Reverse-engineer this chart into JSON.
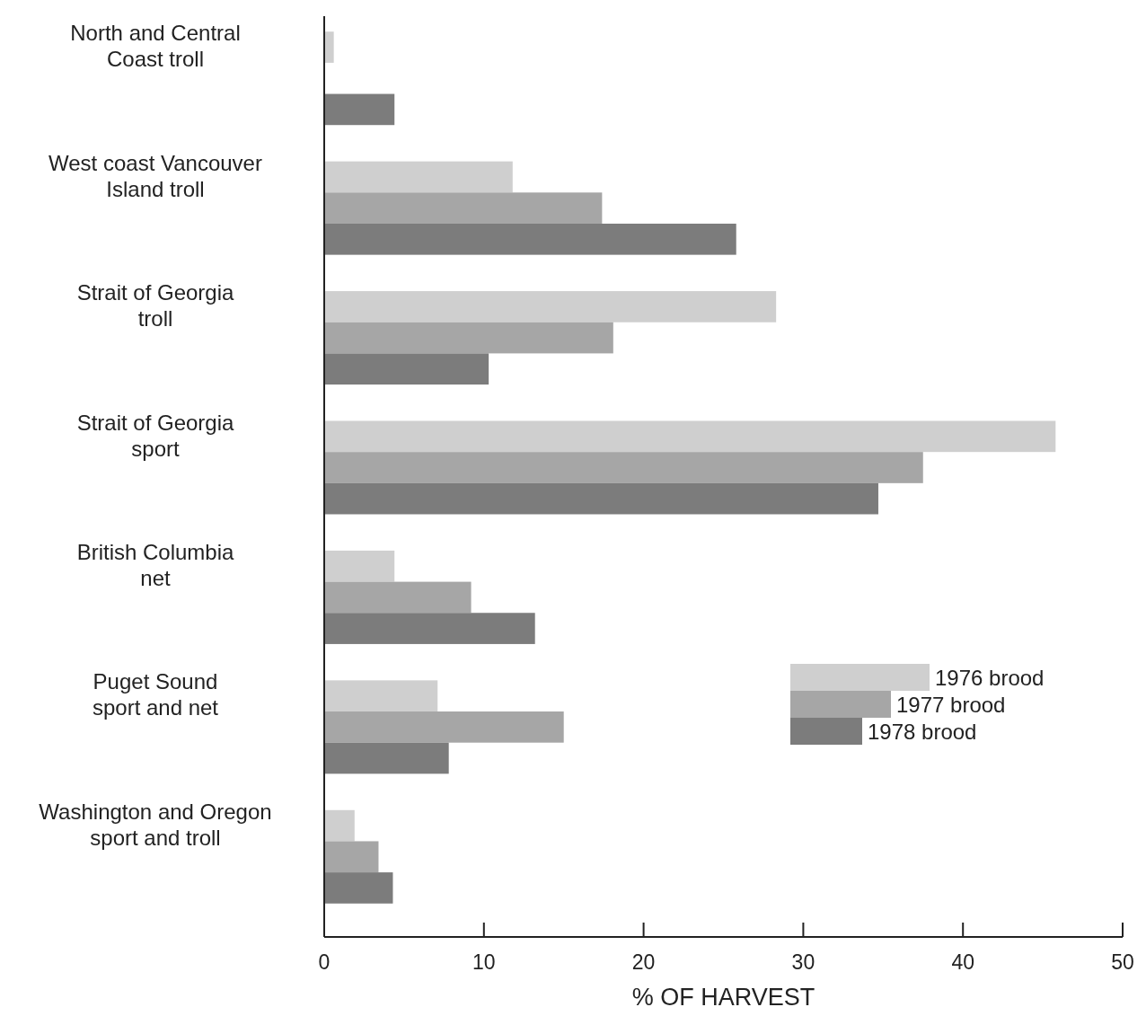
{
  "chart_data": {
    "type": "bar",
    "orientation": "horizontal",
    "xlabel": "% OF HARVEST",
    "categories": [
      "North and Central\nCoast troll",
      "West coast Vancouver\nIsland troll",
      "Strait of Georgia\ntroll",
      "Strait of Georgia\nsport",
      "British Columbia\nnet",
      "Puget Sound\nsport and net",
      "Washington and Oregon\nsport and troll"
    ],
    "series": [
      {
        "name": "1976 brood",
        "color": "#cfcfcf",
        "values": [
          0.6,
          11.8,
          28.3,
          45.8,
          4.4,
          7.1,
          1.9
        ]
      },
      {
        "name": "1977 brood",
        "color": "#a6a6a6",
        "values": [
          0,
          17.4,
          18.1,
          37.5,
          9.2,
          15.0,
          3.4
        ]
      },
      {
        "name": "1978 brood",
        "color": "#7c7c7c",
        "values": [
          4.4,
          25.8,
          10.3,
          34.7,
          13.2,
          7.8,
          4.3
        ]
      }
    ],
    "xlim": [
      0,
      50
    ],
    "xticks": [
      0,
      10,
      20,
      30,
      40,
      50
    ],
    "grid": false,
    "legend": "right"
  }
}
